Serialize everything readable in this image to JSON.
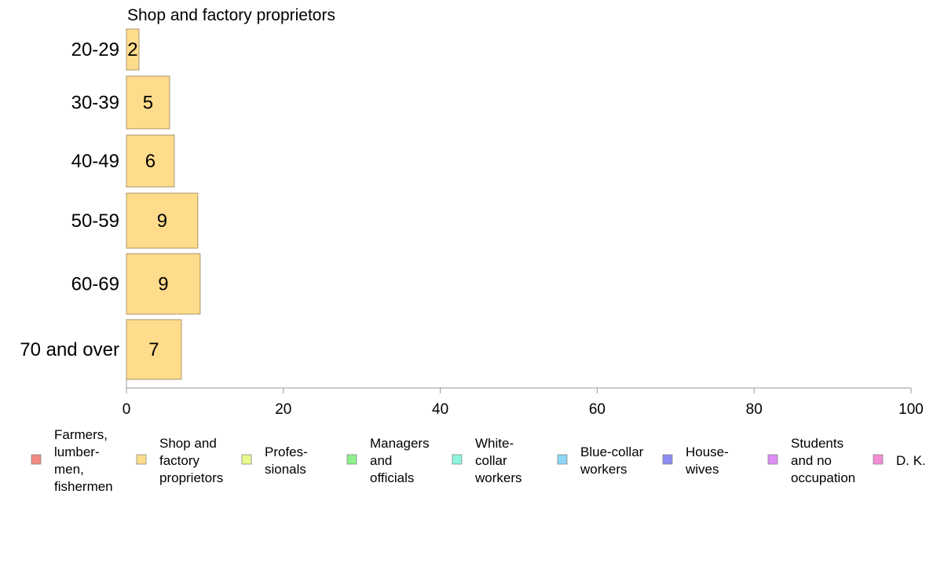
{
  "chart_data": {
    "type": "bar",
    "orientation": "horizontal",
    "title": "Shop and factory proprietors",
    "categories": [
      "20-29",
      "30-39",
      "40-49",
      "50-59",
      "60-69",
      "70 and over"
    ],
    "values": [
      2,
      5,
      6,
      9,
      9,
      7
    ],
    "series_widths": [
      1.6,
      5.5,
      6.1,
      9.1,
      9.4,
      7.0
    ],
    "xlim": [
      0,
      100
    ],
    "xticks": [
      0,
      20,
      40,
      60,
      80,
      100
    ],
    "grid": false,
    "bar_color": "#FFDC8C",
    "bar_edge_color": "#A8946A",
    "legend_position": "bottom",
    "legend": [
      {
        "lines": [
          "Farmers,",
          "lumber-",
          "men,",
          "fishermen"
        ],
        "color": "#F28B82"
      },
      {
        "lines": [
          "Shop and",
          "factory",
          "proprietors"
        ],
        "color": "#FFDC8C"
      },
      {
        "lines": [
          "Profes-",
          "sionals"
        ],
        "color": "#E8FA8C"
      },
      {
        "lines": [
          "Managers",
          "and",
          "officials"
        ],
        "color": "#8CF28C"
      },
      {
        "lines": [
          "White-",
          "collar",
          "workers"
        ],
        "color": "#8CF5DC"
      },
      {
        "lines": [
          "Blue-collar",
          "workers"
        ],
        "color": "#8CD7F5"
      },
      {
        "lines": [
          "House-",
          "wives"
        ],
        "color": "#8C8CF5"
      },
      {
        "lines": [
          "Students",
          "and no",
          "occupation"
        ],
        "color": "#DC8CF5"
      },
      {
        "lines": [
          "D. K."
        ],
        "color": "#F58CD7"
      }
    ]
  }
}
